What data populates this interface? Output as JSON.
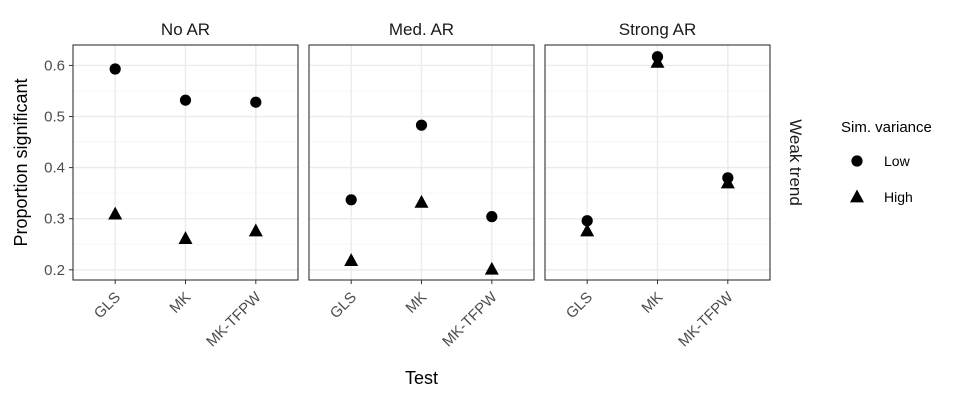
{
  "chart_data": {
    "type": "scatter",
    "facet_labels": [
      "No AR",
      "Med. AR",
      "Strong AR"
    ],
    "row_strip_label": "Weak trend",
    "categories": [
      "GLS",
      "MK",
      "MK-TFPW"
    ],
    "xlabel": "Test",
    "ylabel": "Proportion significant",
    "ylim": [
      0.18,
      0.64
    ],
    "yticks": [
      "0.2",
      "0.3",
      "0.4",
      "0.5",
      "0.6"
    ],
    "grid": true,
    "legend": {
      "title": "Sim. variance",
      "placement": "right",
      "entries": [
        {
          "label": "Low",
          "shape": "circle"
        },
        {
          "label": "High",
          "shape": "triangle"
        }
      ]
    },
    "series": [
      {
        "name": "Low",
        "shape": "circle",
        "panels": {
          "No AR": [
            0.593,
            0.532,
            0.528
          ],
          "Med. AR": [
            0.337,
            0.483,
            0.304
          ],
          "Strong AR": [
            0.296,
            0.617,
            0.38
          ]
        }
      },
      {
        "name": "High",
        "shape": "triangle",
        "panels": {
          "No AR": [
            0.309,
            0.261,
            0.276
          ],
          "Med. AR": [
            0.218,
            0.332,
            0.201
          ],
          "Strong AR": [
            0.276,
            0.606,
            0.37
          ]
        }
      }
    ],
    "colors": {
      "points": "#000000",
      "grid": "#ebebeb",
      "strip_bg": "#ffffff"
    }
  }
}
